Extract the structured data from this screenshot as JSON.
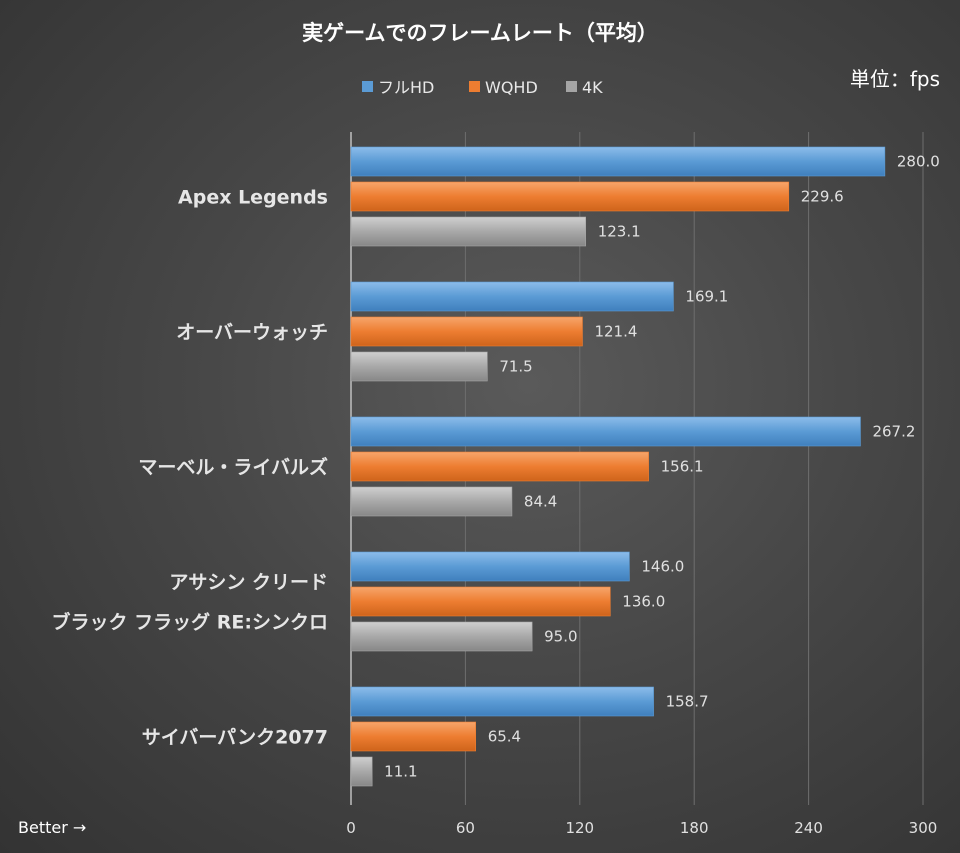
{
  "chart_data": {
    "type": "bar",
    "orientation": "horizontal",
    "title": "実ゲームでのフレームレート（平均）",
    "unit_label": "単位：fps",
    "footnote": "Better →",
    "categories": [
      [
        "Apex Legends"
      ],
      [
        "オーバーウォッチ"
      ],
      [
        "マーベル・ライバルズ"
      ],
      [
        "アサシン クリード",
        "ブラック フラッグ RE:シンクロ"
      ],
      [
        "サイバーパンク2077"
      ]
    ],
    "series": [
      {
        "name": "フルHD",
        "color": "#5b9bd5",
        "values": [
          280.0,
          169.1,
          267.2,
          146.0,
          158.7
        ],
        "labels": [
          "280.0",
          "169.1",
          "267.2",
          "146.0",
          "158.7"
        ]
      },
      {
        "name": "WQHD",
        "color": "#ed7d31",
        "values": [
          229.6,
          121.4,
          156.1,
          136.0,
          65.4
        ],
        "labels": [
          "229.6",
          "121.4",
          "156.1",
          "136.0",
          "65.4"
        ]
      },
      {
        "name": "4K",
        "color": "#a5a5a5",
        "values": [
          123.1,
          71.5,
          84.4,
          95.0,
          11.1
        ],
        "labels": [
          "123.1",
          "71.5",
          "84.4",
          "95.0",
          "11.1"
        ]
      }
    ],
    "xlim": [
      0,
      300
    ],
    "xticks": [
      "0",
      "60",
      "120",
      "180",
      "240",
      "300"
    ],
    "grid": true,
    "legend_position": "top"
  }
}
